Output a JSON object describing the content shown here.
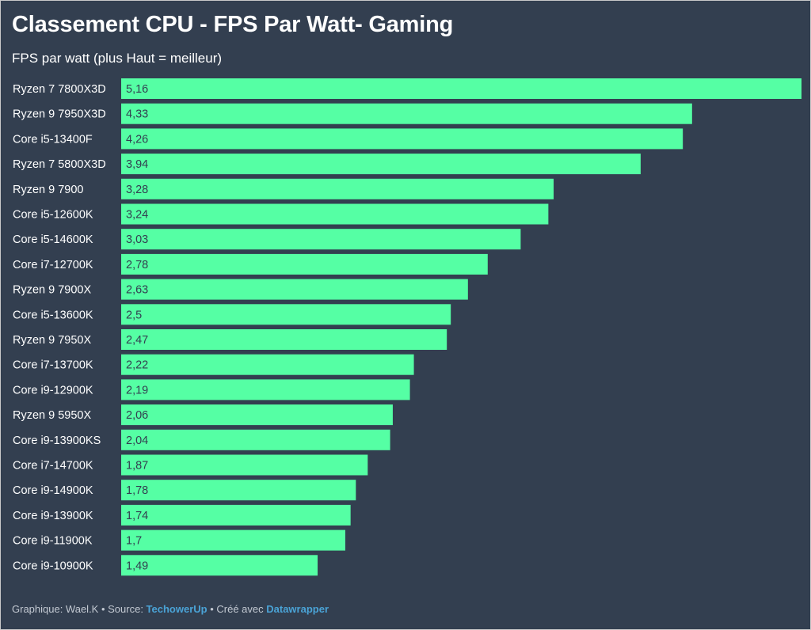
{
  "chart_data": {
    "type": "bar",
    "orientation": "horizontal",
    "title": "Classement CPU - FPS Par Watt- Gaming",
    "subtitle": "FPS par watt (plus Haut = meilleur)",
    "categories": [
      "Ryzen 7 7800X3D",
      "Ryzen 9 7950X3D",
      "Core i5-13400F",
      "Ryzen 7 5800X3D",
      "Ryzen 9 7900",
      "Core i5-12600K",
      "Core i5-14600K",
      "Core i7-12700K",
      "Ryzen 9 7900X",
      "Core i5-13600K",
      "Ryzen 9 7950X",
      "Core i7-13700K",
      "Core i9-12900K",
      "Ryzen 9 5950X",
      "Core i9-13900KS",
      "Core i7-14700K",
      "Core i9-14900K",
      "Core i9-13900K",
      "Core i9-11900K",
      "Core i9-10900K"
    ],
    "values": [
      5.16,
      4.33,
      4.26,
      3.94,
      3.28,
      3.24,
      3.03,
      2.78,
      2.63,
      2.5,
      2.47,
      2.22,
      2.19,
      2.06,
      2.04,
      1.87,
      1.78,
      1.74,
      1.7,
      1.49
    ],
    "value_labels": [
      "5,16",
      "4,33",
      "4,26",
      "3,94",
      "3,28",
      "3,24",
      "3,03",
      "2,78",
      "2,63",
      "2,5",
      "2,47",
      "2,22",
      "2,19",
      "2,06",
      "2,04",
      "1,87",
      "1,78",
      "1,74",
      "1,7",
      "1,49"
    ],
    "xlim": [
      0,
      5.16
    ],
    "bar_color": "#55ffa4",
    "background_color": "#333f50",
    "grid": false,
    "legend": "none"
  },
  "footer": {
    "prefix": "Graphique: Wael.K • Source: ",
    "source": "TechowerUp",
    "middle": " • Créé avec ",
    "tool": "Datawrapper"
  },
  "colors": {
    "link": "#4aa3d6",
    "footer_text": "#c3c9d2"
  }
}
